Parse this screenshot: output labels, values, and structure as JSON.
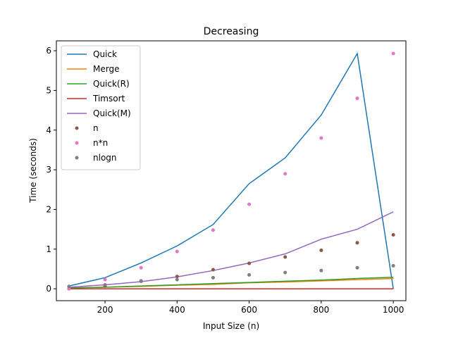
{
  "chart_data": {
    "type": "line",
    "title": "Decreasing",
    "xlabel": "Input Size (n)",
    "ylabel": "Time (seconds)",
    "xlim": [
      65,
      1035
    ],
    "ylim": [
      -0.3,
      6.25
    ],
    "xticks": [
      200,
      400,
      600,
      800,
      1000
    ],
    "yticks": [
      0,
      1,
      2,
      3,
      4,
      5,
      6
    ],
    "legend_position": "top-left",
    "grid": false,
    "x": [
      100,
      200,
      300,
      400,
      500,
      600,
      700,
      800,
      900,
      1000
    ],
    "series": [
      {
        "name": "Quick",
        "kind": "line",
        "color": "#1f77b4",
        "values": [
          0.07,
          0.28,
          0.65,
          1.08,
          1.62,
          2.65,
          3.3,
          4.38,
          5.93,
          0.0
        ]
      },
      {
        "name": "Merge",
        "kind": "line",
        "color": "#ff7f0e",
        "values": [
          0.02,
          0.04,
          0.06,
          0.09,
          0.11,
          0.15,
          0.17,
          0.2,
          0.23,
          0.26
        ]
      },
      {
        "name": "Quick(R)",
        "kind": "line",
        "color": "#2ca02c",
        "values": [
          0.02,
          0.04,
          0.07,
          0.1,
          0.13,
          0.16,
          0.19,
          0.22,
          0.26,
          0.29
        ]
      },
      {
        "name": "Timsort",
        "kind": "line",
        "color": "#d62728",
        "values": [
          0.0,
          0.0,
          0.0,
          0.0,
          0.0,
          0.0,
          0.0,
          0.0,
          0.0,
          0.0
        ]
      },
      {
        "name": "Quick(M)",
        "kind": "line",
        "color": "#9467bd",
        "values": [
          0.04,
          0.1,
          0.18,
          0.3,
          0.46,
          0.65,
          0.88,
          1.25,
          1.5,
          1.94
        ]
      },
      {
        "name": "n",
        "kind": "scatter",
        "color": "#8c564b",
        "values": [
          0.0,
          0.07,
          0.19,
          0.31,
          0.48,
          0.64,
          0.8,
          0.97,
          1.16,
          1.36
        ]
      },
      {
        "name": "n*n",
        "kind": "scatter",
        "color": "#e377c2",
        "values": [
          0.0,
          0.23,
          0.53,
          0.94,
          1.48,
          2.13,
          2.9,
          3.8,
          4.8,
          5.93
        ]
      },
      {
        "name": "nlogn",
        "kind": "scatter",
        "color": "#7f7f7f",
        "values": [
          0.06,
          0.1,
          0.2,
          0.23,
          0.28,
          0.35,
          0.41,
          0.46,
          0.53,
          0.58
        ]
      }
    ]
  }
}
